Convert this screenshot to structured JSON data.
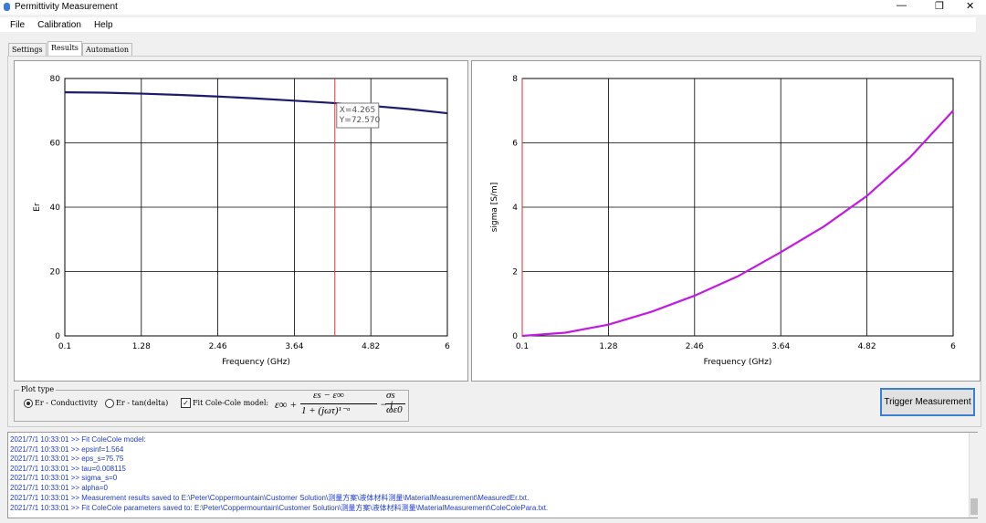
{
  "window": {
    "title": "Permittivity Measurement"
  },
  "menu": [
    "File",
    "Calibration",
    "Help"
  ],
  "tabs": [
    "Settings",
    "Results",
    "Automation"
  ],
  "chart_data": [
    {
      "type": "line",
      "x_label": "Frequency (GHz)",
      "y_label": "Er",
      "color": "#1c1c6e",
      "x": [
        0.1,
        0.69,
        1.28,
        1.87,
        2.46,
        3.05,
        3.64,
        4.23,
        4.82,
        5.41,
        6
      ],
      "values": [
        75.7,
        75.6,
        75.3,
        74.9,
        74.4,
        73.8,
        73.1,
        72.4,
        71.5,
        70.5,
        69.2
      ],
      "xlim": [
        0.1,
        6
      ],
      "ylim": [
        0,
        80
      ],
      "xticks": [
        0.1,
        1.28,
        2.46,
        3.64,
        4.82,
        6
      ],
      "yticks": [
        0,
        20,
        40,
        60,
        80
      ],
      "grid": true,
      "cursor": {
        "x": 4.265,
        "label_x": "X=4.265",
        "label_y": "Y=72.570"
      }
    },
    {
      "type": "line",
      "x_label": "Frequency (GHz)",
      "y_label": "sigma [S/m]",
      "color": "#c21be0",
      "x": [
        0.1,
        0.69,
        1.28,
        1.87,
        2.46,
        3.05,
        3.64,
        4.23,
        4.82,
        5.41,
        6
      ],
      "values": [
        0,
        0.1,
        0.35,
        0.75,
        1.25,
        1.85,
        2.6,
        3.4,
        4.35,
        5.55,
        7.0
      ],
      "xlim": [
        0.1,
        6
      ],
      "ylim": [
        0,
        8
      ],
      "xticks": [
        0.1,
        1.28,
        2.46,
        3.64,
        4.82,
        6
      ],
      "yticks": [
        0,
        2,
        4,
        6,
        8
      ],
      "grid": true,
      "cursor": {
        "x": 0.1
      }
    }
  ],
  "plot_type": {
    "title": "Plot type",
    "options": [
      "Er - Conductivity",
      "Er - tan(delta)"
    ],
    "fit": "Fit Cole-Cole model:",
    "formula": {
      "a": "ε∞ +",
      "num": "εs − ε∞",
      "den": "1 + (jωτ)¹⁻ᵅ",
      "b": "− j",
      "num2": "σs",
      "den2": "ωε0"
    }
  },
  "button": "Trigger Measurement",
  "log": [
    "2021/7/1 10:33:01 >> Fit ColeCole model:",
    "2021/7/1 10:33:01 >> epsinf=1.564",
    "2021/7/1 10:33:01 >> eps_s=75.75",
    "2021/7/1 10:33:01 >> tau=0.008115",
    "2021/7/1 10:33:01 >> sigma_s=0",
    "2021/7/1 10:33:01 >> alpha=0",
    "2021/7/1 10:33:01 >> Measurement results saved to E:\\Peter\\Coppermountain\\Customer Solution\\测量方案\\液体材料测量\\MaterialMeasurement\\MeasuredEr.txt.",
    "2021/7/1 10:33:01 >> Fit ColeCole parameters saved to: E:\\Peter\\Coppermountain\\Customer Solution\\测量方案\\液体材料测量\\MaterialMeasurement\\ColeColePara.txt."
  ]
}
